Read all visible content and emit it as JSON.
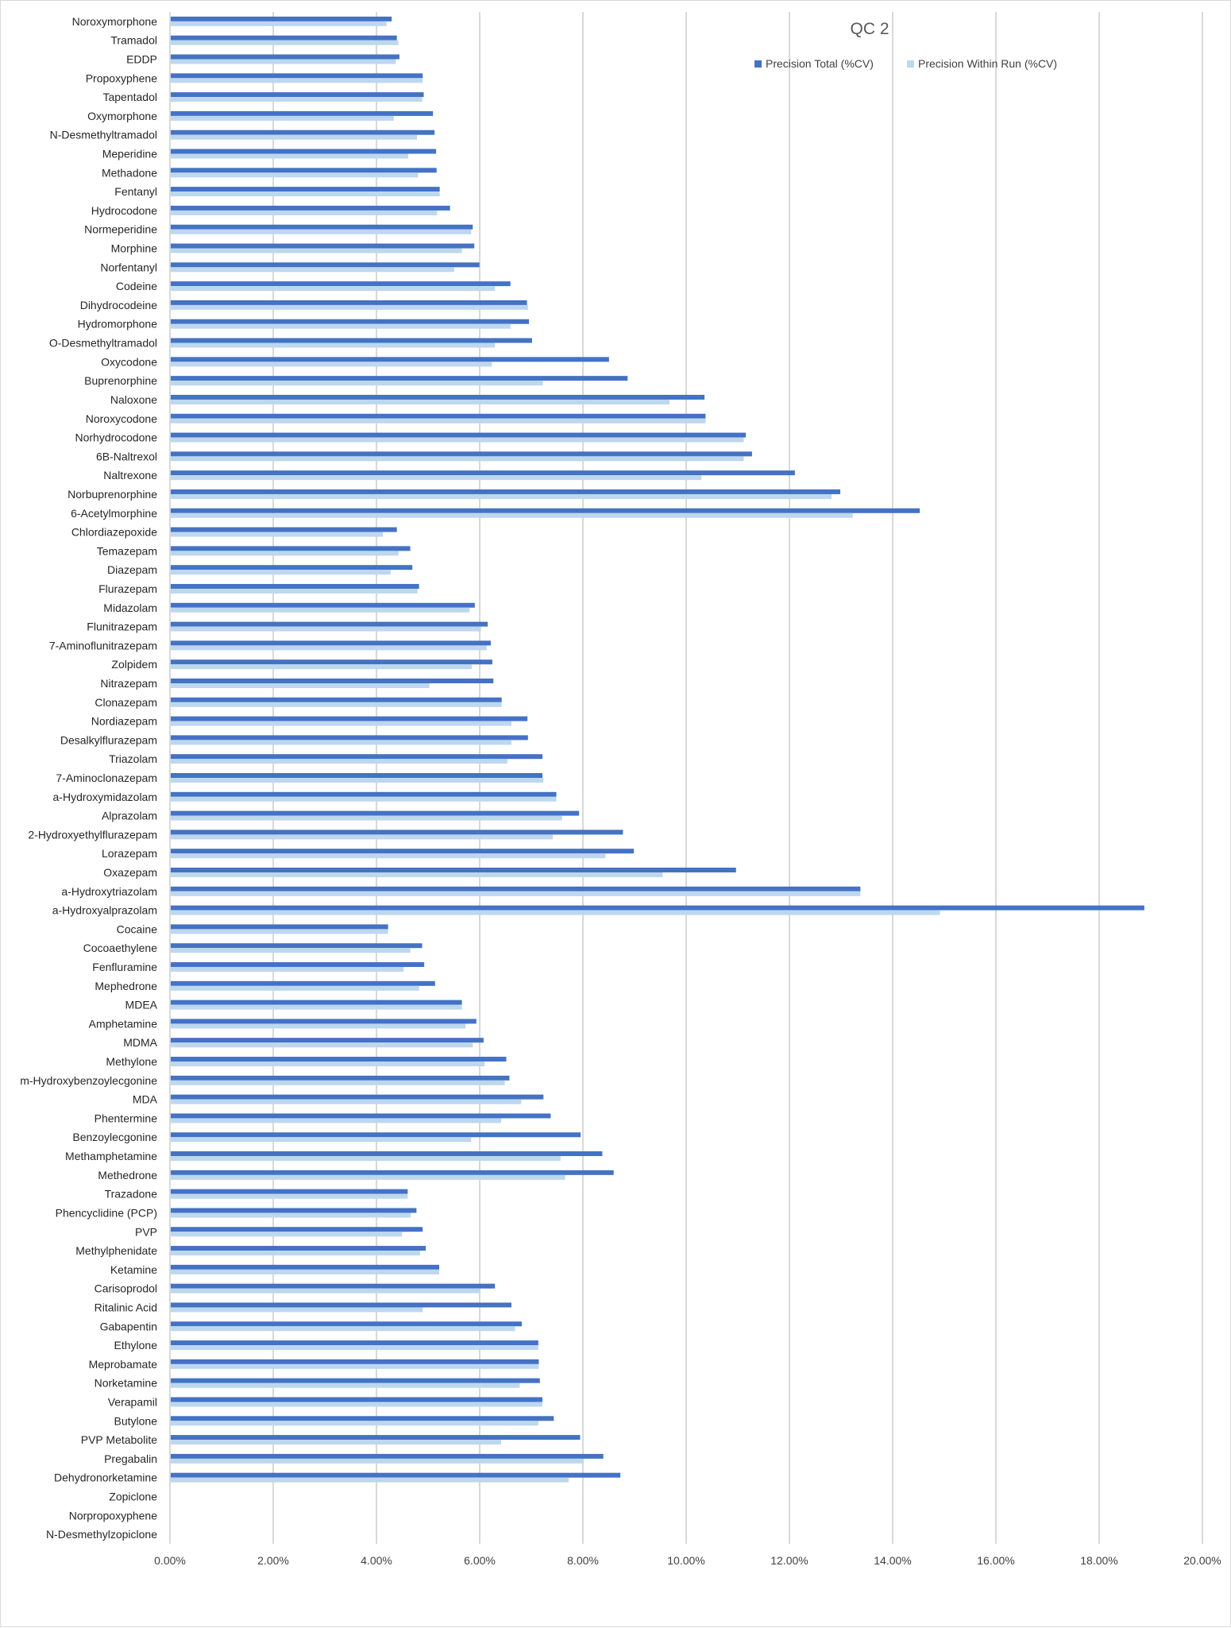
{
  "chart_data": {
    "type": "bar",
    "orientation": "horizontal",
    "title": "QC 2",
    "xlabel": "",
    "ylabel": "",
    "xlim": [
      0,
      0.2
    ],
    "x_ticks": [
      "0.00%",
      "2.00%",
      "4.00%",
      "6.00%",
      "8.00%",
      "10.00%",
      "12.00%",
      "14.00%",
      "16.00%",
      "18.00%",
      "20.00%"
    ],
    "grid": "vertical",
    "legend_position": "top-right",
    "colors": {
      "total": "#4472c4",
      "within_run": "#bdd7ee",
      "grid": "#d9d9d9"
    },
    "categories": [
      "Noroxymorphone",
      "Tramadol",
      "EDDP",
      "Propoxyphene",
      "Tapentadol",
      "Oxymorphone",
      "N-Desmethyltramadol",
      "Meperidine",
      "Methadone",
      "Fentanyl",
      "Hydrocodone",
      "Normeperidine",
      "Morphine",
      "Norfentanyl",
      "Codeine",
      "Dihydrocodeine",
      "Hydromorphone",
      "O-Desmethyltramadol",
      "Oxycodone",
      "Buprenorphine",
      "Naloxone",
      "Noroxycodone",
      "Norhydrocodone",
      "6B-Naltrexol",
      "Naltrexone",
      "Norbuprenorphine",
      "6-Acetylmorphine",
      "Chlordiazepoxide",
      "Temazepam",
      "Diazepam",
      "Flurazepam",
      "Midazolam",
      "Flunitrazepam",
      "7-Aminoflunitrazepam",
      "Zolpidem",
      "Nitrazepam",
      "Clonazepam",
      "Nordiazepam",
      "Desalkylflurazepam",
      "Triazolam",
      "7-Aminoclonazepam",
      "a-Hydroxymidazolam",
      "Alprazolam",
      "2-Hydroxyethylflurazepam",
      "Lorazepam",
      "Oxazepam",
      "a-Hydroxytriazolam",
      "a-Hydroxyalprazolam",
      "Cocaine",
      "Cocoaethylene",
      "Fenfluramine",
      "Mephedrone",
      "MDEA",
      "Amphetamine",
      "MDMA",
      "Methylone",
      "m-Hydroxybenzoylecgonine",
      "MDA",
      "Phentermine",
      "Benzoylecgonine",
      "Methamphetamine",
      "Methedrone",
      "Trazadone",
      "Phencyclidine (PCP)",
      "PVP",
      "Methylphenidate",
      "Ketamine",
      "Carisoprodol",
      "Ritalinic Acid",
      "Gabapentin",
      "Ethylone",
      "Meprobamate",
      "Norketamine",
      "Verapamil",
      "Butylone",
      "PVP Metabolite",
      "Pregabalin",
      "Dehydronorketamine",
      "Zopiclone",
      "Norpropoxyphene",
      "N-Desmethylzopiclone"
    ],
    "series": [
      {
        "name": "Precision Total (%CV)",
        "values": [
          0.0428,
          0.0438,
          0.0443,
          0.0488,
          0.049,
          0.0508,
          0.0511,
          0.0514,
          0.0515,
          0.0521,
          0.0541,
          0.0585,
          0.0588,
          0.0598,
          0.0658,
          0.069,
          0.0694,
          0.07,
          0.0849,
          0.0885,
          0.1034,
          0.1036,
          0.1114,
          0.1126,
          0.1209,
          0.1297,
          0.1451,
          0.0438,
          0.0464,
          0.0468,
          0.0481,
          0.0589,
          0.0614,
          0.062,
          0.0623,
          0.0625,
          0.0641,
          0.0691,
          0.0692,
          0.072,
          0.072,
          0.0747,
          0.0791,
          0.0876,
          0.0897,
          0.1095,
          0.1336,
          0.1886,
          0.0421,
          0.0487,
          0.0491,
          0.0512,
          0.0564,
          0.0592,
          0.0606,
          0.065,
          0.0656,
          0.0722,
          0.0736,
          0.0794,
          0.0836,
          0.0858,
          0.0459,
          0.0476,
          0.0488,
          0.0494,
          0.052,
          0.0628,
          0.066,
          0.068,
          0.0712,
          0.0713,
          0.0715,
          0.072,
          0.0742,
          0.0793,
          0.0838,
          0.0871,
          0,
          0,
          0
        ]
      },
      {
        "name": "Precision Within Run (%CV)",
        "values": [
          0.0418,
          0.0441,
          0.0436,
          0.0488,
          0.0487,
          0.0432,
          0.0477,
          0.046,
          0.0479,
          0.0521,
          0.0516,
          0.0582,
          0.0564,
          0.0549,
          0.0628,
          0.0692,
          0.0658,
          0.0628,
          0.0622,
          0.0721,
          0.0966,
          0.1036,
          0.111,
          0.111,
          0.1028,
          0.128,
          0.1321,
          0.0411,
          0.0441,
          0.0426,
          0.0478,
          0.0579,
          0.0601,
          0.0612,
          0.0583,
          0.0501,
          0.0641,
          0.066,
          0.066,
          0.0652,
          0.0722,
          0.0747,
          0.0758,
          0.074,
          0.0842,
          0.0953,
          0.1336,
          0.149,
          0.0421,
          0.0464,
          0.0451,
          0.0481,
          0.0564,
          0.0571,
          0.0585,
          0.0608,
          0.0647,
          0.0679,
          0.064,
          0.0582,
          0.0755,
          0.0764,
          0.0459,
          0.0465,
          0.0448,
          0.0483,
          0.052,
          0.06,
          0.0488,
          0.0667,
          0.0712,
          0.0713,
          0.0676,
          0.072,
          0.0712,
          0.064,
          0.08,
          0.0771,
          0,
          0,
          0
        ]
      }
    ]
  }
}
